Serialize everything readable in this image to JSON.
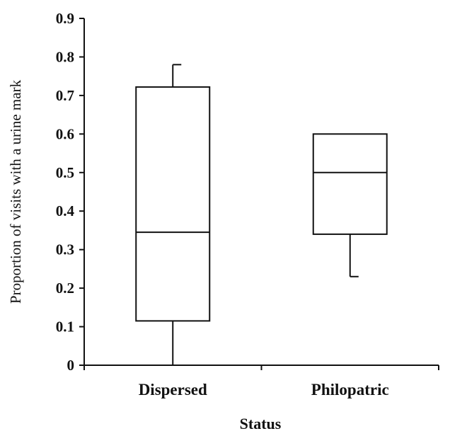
{
  "chart_data": {
    "type": "box",
    "title": "",
    "xlabel": "Status",
    "ylabel": "Proportion of visits with a urine mark",
    "ylim": [
      0,
      0.9
    ],
    "yticks": [
      "0",
      "0.1",
      "0.2",
      "0.3",
      "0.4",
      "0.5",
      "0.6",
      "0.7",
      "0.8",
      "0.9"
    ],
    "categories": [
      "Dispersed",
      "Philopatric"
    ],
    "boxes": [
      {
        "category": "Dispersed",
        "whisker_low": 0,
        "q1": 0.115,
        "median": 0.345,
        "q3": 0.722,
        "whisker_high": 0.78
      },
      {
        "category": "Philopatric",
        "whisker_low": 0.23,
        "q1": 0.34,
        "median": 0.5,
        "q3": 0.6,
        "whisker_high": 0.6
      }
    ],
    "grid": false,
    "legend": "none",
    "colors": {
      "stroke": "#111111",
      "box_fill": "#ffffff",
      "background": "#ffffff"
    }
  }
}
